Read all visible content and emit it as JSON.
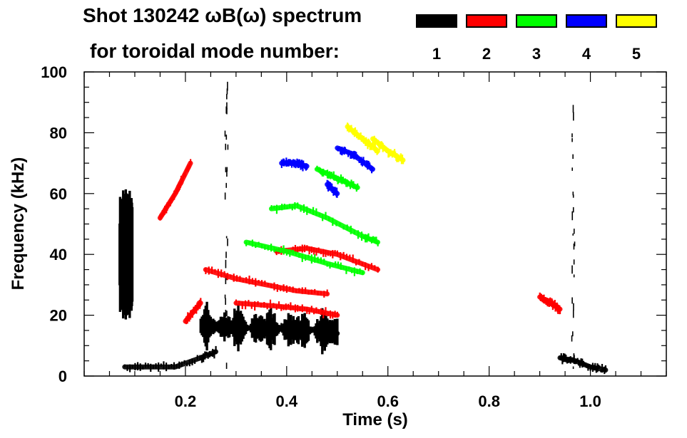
{
  "title": {
    "line1": "Shot 130242 ωB(ω) spectrum",
    "line2": "for toroidal mode number:"
  },
  "legend": [
    {
      "n": "1",
      "color": "#000000"
    },
    {
      "n": "2",
      "color": "#ff0000"
    },
    {
      "n": "3",
      "color": "#00ff00"
    },
    {
      "n": "4",
      "color": "#0000ff"
    },
    {
      "n": "5",
      "color": "#ffff00"
    }
  ],
  "chart_data": {
    "type": "heatmap",
    "title": "Shot 130242 ωB(ω) spectrum for toroidal mode number:",
    "xlabel": "Time (s)",
    "ylabel": "Frequency (kHz)",
    "xlim": [
      0.0,
      1.15
    ],
    "ylim": [
      0,
      100
    ],
    "xticks": [
      0.2,
      0.4,
      0.6,
      0.8,
      1.0
    ],
    "xtick_labels": [
      "0.2",
      "0.4",
      "0.6",
      "0.8",
      "1.0"
    ],
    "yticks": [
      0,
      20,
      40,
      60,
      80,
      100
    ],
    "ytick_labels": [
      "0",
      "20",
      "40",
      "60",
      "80",
      "100"
    ],
    "series": [
      {
        "name": "n=1",
        "color": "#000000",
        "features": [
          {
            "kind": "burst",
            "t": [
              0.07,
              0.095
            ],
            "f": [
              18,
              62
            ]
          },
          {
            "kind": "line",
            "t": [
              0.08,
              0.13,
              0.18,
              0.23,
              0.26
            ],
            "f": [
              3,
              3,
              3,
              6,
              8
            ]
          },
          {
            "kind": "band",
            "t": [
              0.23,
              0.5
            ],
            "f": [
              8,
              25
            ]
          },
          {
            "kind": "line",
            "t": [
              0.38,
              0.42,
              0.47,
              0.5
            ],
            "f": [
              16,
              16,
              15,
              14
            ]
          },
          {
            "kind": "line",
            "t": [
              0.94,
              0.97,
              1.0,
              1.03
            ],
            "f": [
              6,
              5,
              3,
              2
            ]
          },
          {
            "kind": "stripe",
            "t": [
              0.28,
              0.28
            ],
            "f": [
              0,
              100
            ]
          },
          {
            "kind": "stripe",
            "t": [
              0.965,
              0.965
            ],
            "f": [
              0,
              95
            ]
          }
        ]
      },
      {
        "name": "n=2",
        "color": "#ff0000",
        "features": [
          {
            "kind": "line",
            "t": [
              0.15,
              0.18,
              0.21
            ],
            "f": [
              52,
              60,
              70
            ]
          },
          {
            "kind": "line",
            "t": [
              0.2,
              0.23
            ],
            "f": [
              18,
              24
            ]
          },
          {
            "kind": "line",
            "t": [
              0.24,
              0.3,
              0.36,
              0.42,
              0.48
            ],
            "f": [
              35,
              32,
              30,
              28,
              27
            ]
          },
          {
            "kind": "line",
            "t": [
              0.3,
              0.38,
              0.44,
              0.5
            ],
            "f": [
              24,
              23,
              22,
              20
            ]
          },
          {
            "kind": "line",
            "t": [
              0.38,
              0.44,
              0.5,
              0.58
            ],
            "f": [
              41,
              42,
              40,
              35
            ]
          },
          {
            "kind": "line",
            "t": [
              0.9,
              0.92,
              0.94
            ],
            "f": [
              26,
              24,
              22
            ]
          }
        ]
      },
      {
        "name": "n=3",
        "color": "#00ff00",
        "features": [
          {
            "kind": "line",
            "t": [
              0.37,
              0.42,
              0.48,
              0.55,
              0.58
            ],
            "f": [
              55,
              56,
              52,
              46,
              44
            ]
          },
          {
            "kind": "line",
            "t": [
              0.32,
              0.4,
              0.48,
              0.55
            ],
            "f": [
              44,
              41,
              37,
              34
            ]
          },
          {
            "kind": "line",
            "t": [
              0.46,
              0.5,
              0.54
            ],
            "f": [
              68,
              65,
              62
            ]
          }
        ]
      },
      {
        "name": "n=4",
        "color": "#0000ff",
        "features": [
          {
            "kind": "line",
            "t": [
              0.39,
              0.42,
              0.44
            ],
            "f": [
              70,
              70,
              69
            ]
          },
          {
            "kind": "line",
            "t": [
              0.5,
              0.53,
              0.57
            ],
            "f": [
              75,
              73,
              68
            ]
          },
          {
            "kind": "line",
            "t": [
              0.48,
              0.5
            ],
            "f": [
              63,
              60
            ]
          }
        ]
      },
      {
        "name": "n=5",
        "color": "#ffff00",
        "features": [
          {
            "kind": "line",
            "t": [
              0.52,
              0.55,
              0.58
            ],
            "f": [
              82,
              78,
              74
            ]
          },
          {
            "kind": "line",
            "t": [
              0.57,
              0.6,
              0.63
            ],
            "f": [
              78,
              74,
              71
            ]
          }
        ]
      }
    ]
  }
}
